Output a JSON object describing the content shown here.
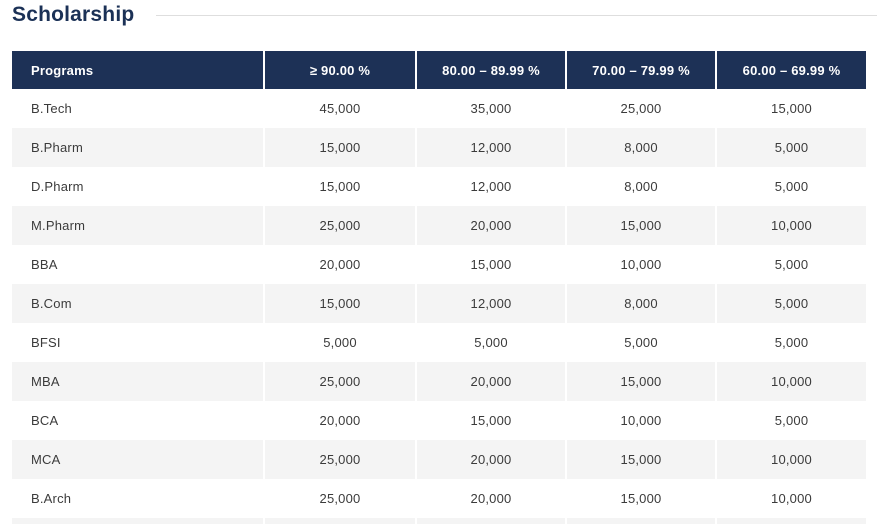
{
  "page": {
    "title": "Scholarship"
  },
  "table": {
    "headers": [
      "Programs",
      "≥ 90.00 %",
      "80.00 – 89.99 %",
      "70.00 – 79.99 %",
      "60.00 – 69.99 %"
    ],
    "rows": [
      {
        "program": "B.Tech",
        "values": [
          "45,000",
          "35,000",
          "25,000",
          "15,000"
        ]
      },
      {
        "program": "B.Pharm",
        "values": [
          "15,000",
          "12,000",
          "8,000",
          "5,000"
        ]
      },
      {
        "program": "D.Pharm",
        "values": [
          "15,000",
          "12,000",
          "8,000",
          "5,000"
        ]
      },
      {
        "program": "M.Pharm",
        "values": [
          "25,000",
          "20,000",
          "15,000",
          "10,000"
        ]
      },
      {
        "program": "BBA",
        "values": [
          "20,000",
          "15,000",
          "10,000",
          "5,000"
        ]
      },
      {
        "program": "B.Com",
        "values": [
          "15,000",
          "12,000",
          "8,000",
          "5,000"
        ]
      },
      {
        "program": "BFSI",
        "values": [
          "5,000",
          "5,000",
          "5,000",
          "5,000"
        ]
      },
      {
        "program": "MBA",
        "values": [
          "25,000",
          "20,000",
          "15,000",
          "10,000"
        ]
      },
      {
        "program": "BCA",
        "values": [
          "20,000",
          "15,000",
          "10,000",
          "5,000"
        ]
      },
      {
        "program": "MCA",
        "values": [
          "25,000",
          "20,000",
          "15,000",
          "10,000"
        ]
      },
      {
        "program": "B.Arch",
        "values": [
          "25,000",
          "20,000",
          "15,000",
          "10,000"
        ]
      }
    ]
  },
  "colors": {
    "header_navy": "#1d3156",
    "title_navy": "#1b3156",
    "row_alt_gray": "#f4f4f4",
    "body_text": "#3b3b3b",
    "divider": "#dedede"
  }
}
